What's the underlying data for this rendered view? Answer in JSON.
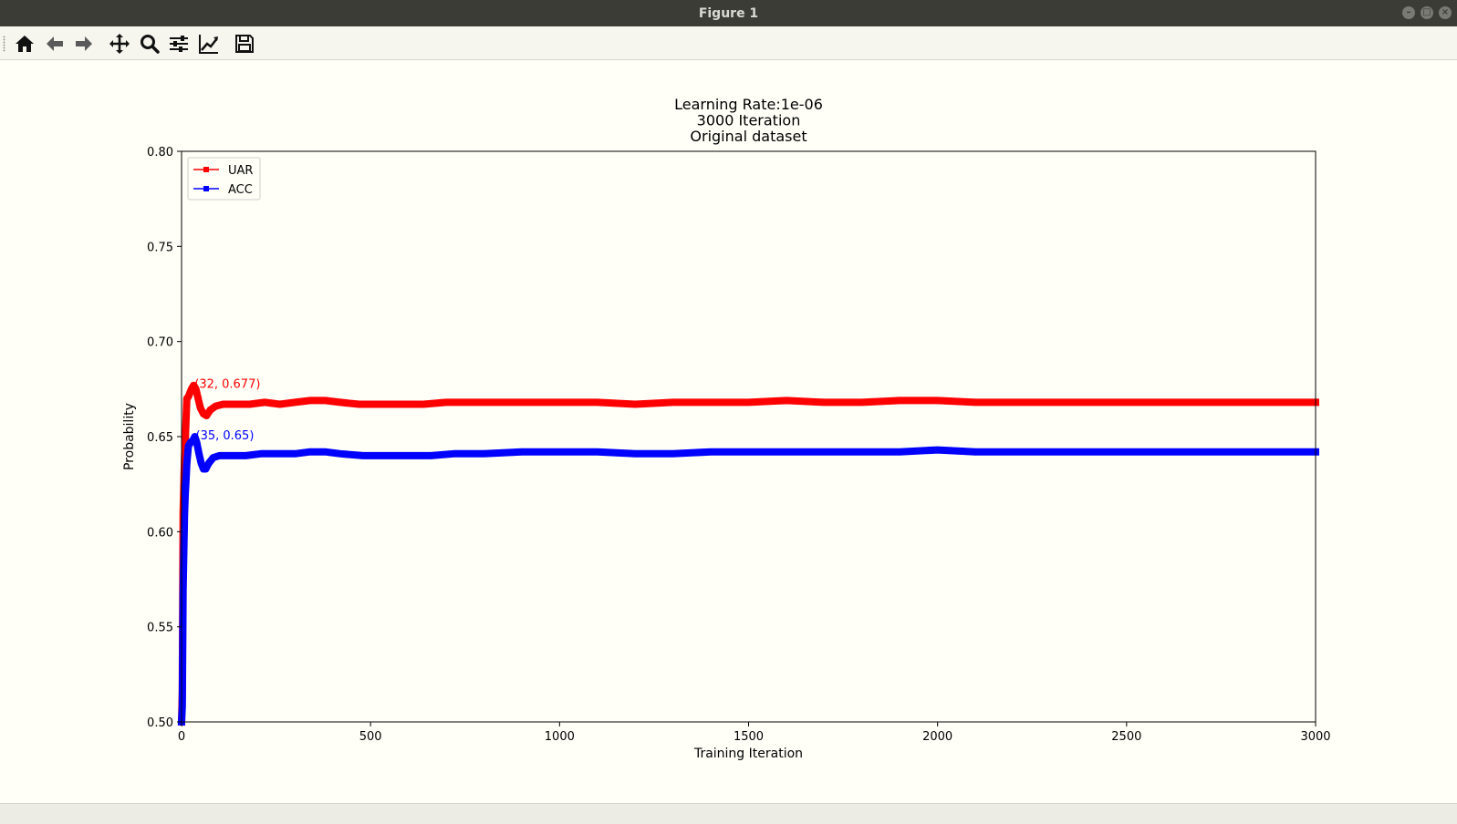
{
  "window": {
    "title": "Figure 1"
  },
  "toolbar": {
    "buttons": [
      {
        "name": "home",
        "icon": "home-icon"
      },
      {
        "name": "back",
        "icon": "arrow-left-icon"
      },
      {
        "name": "forward",
        "icon": "arrow-right-icon"
      },
      {
        "name": "pan",
        "icon": "move-icon"
      },
      {
        "name": "zoom",
        "icon": "magnifier-icon"
      },
      {
        "name": "configure-subplots",
        "icon": "sliders-icon"
      },
      {
        "name": "edit-axis",
        "icon": "chart-line-icon"
      },
      {
        "name": "save",
        "icon": "floppy-disk-icon"
      }
    ]
  },
  "chart_data": {
    "type": "line",
    "title_lines": [
      "Learning Rate:1e-06",
      "3000 Iteration",
      "Original dataset"
    ],
    "xlabel": "Training Iteration",
    "ylabel": "Probability",
    "xlim": [
      0,
      3000
    ],
    "ylim": [
      0.5,
      0.8
    ],
    "xticks": [
      0,
      500,
      1000,
      1500,
      2000,
      2500,
      3000
    ],
    "xtick_labels": [
      "0",
      "500",
      "1000",
      "1500",
      "2000",
      "2500",
      "3000"
    ],
    "yticks": [
      0.5,
      0.55,
      0.6,
      0.65,
      0.7,
      0.75,
      0.8
    ],
    "ytick_labels": [
      "0.50",
      "0.55",
      "0.60",
      "0.65",
      "0.70",
      "0.75",
      "0.80"
    ],
    "grid": false,
    "legend_position": "top-left",
    "series": [
      {
        "name": "UAR",
        "color": "#ff0000",
        "points": [
          [
            0,
            0.5
          ],
          [
            2,
            0.516
          ],
          [
            4,
            0.61
          ],
          [
            6,
            0.625
          ],
          [
            8,
            0.64
          ],
          [
            10,
            0.648
          ],
          [
            12,
            0.66
          ],
          [
            14,
            0.67
          ],
          [
            18,
            0.671
          ],
          [
            22,
            0.673
          ],
          [
            26,
            0.675
          ],
          [
            32,
            0.677
          ],
          [
            38,
            0.675
          ],
          [
            44,
            0.67
          ],
          [
            50,
            0.665
          ],
          [
            58,
            0.662
          ],
          [
            66,
            0.661
          ],
          [
            76,
            0.664
          ],
          [
            90,
            0.666
          ],
          [
            110,
            0.667
          ],
          [
            140,
            0.667
          ],
          [
            180,
            0.667
          ],
          [
            220,
            0.668
          ],
          [
            260,
            0.667
          ],
          [
            300,
            0.668
          ],
          [
            340,
            0.669
          ],
          [
            380,
            0.669
          ],
          [
            420,
            0.668
          ],
          [
            470,
            0.667
          ],
          [
            520,
            0.667
          ],
          [
            580,
            0.667
          ],
          [
            640,
            0.667
          ],
          [
            700,
            0.668
          ],
          [
            800,
            0.668
          ],
          [
            900,
            0.668
          ],
          [
            1000,
            0.668
          ],
          [
            1100,
            0.668
          ],
          [
            1200,
            0.667
          ],
          [
            1300,
            0.668
          ],
          [
            1400,
            0.668
          ],
          [
            1500,
            0.668
          ],
          [
            1600,
            0.669
          ],
          [
            1700,
            0.668
          ],
          [
            1800,
            0.668
          ],
          [
            1900,
            0.669
          ],
          [
            2000,
            0.669
          ],
          [
            2100,
            0.668
          ],
          [
            2200,
            0.668
          ],
          [
            2300,
            0.668
          ],
          [
            2400,
            0.668
          ],
          [
            2500,
            0.668
          ],
          [
            2600,
            0.668
          ],
          [
            2700,
            0.668
          ],
          [
            2800,
            0.668
          ],
          [
            2900,
            0.668
          ],
          [
            3000,
            0.668
          ]
        ]
      },
      {
        "name": "ACC",
        "color": "#0000ff",
        "points": [
          [
            0,
            0.5
          ],
          [
            2,
            0.508
          ],
          [
            4,
            0.569
          ],
          [
            6,
            0.59
          ],
          [
            8,
            0.61
          ],
          [
            10,
            0.62
          ],
          [
            12,
            0.628
          ],
          [
            14,
            0.636
          ],
          [
            18,
            0.645
          ],
          [
            24,
            0.647
          ],
          [
            30,
            0.648
          ],
          [
            35,
            0.65
          ],
          [
            40,
            0.647
          ],
          [
            46,
            0.641
          ],
          [
            52,
            0.636
          ],
          [
            58,
            0.633
          ],
          [
            64,
            0.633
          ],
          [
            72,
            0.636
          ],
          [
            84,
            0.639
          ],
          [
            100,
            0.64
          ],
          [
            130,
            0.64
          ],
          [
            170,
            0.64
          ],
          [
            210,
            0.641
          ],
          [
            260,
            0.641
          ],
          [
            300,
            0.641
          ],
          [
            340,
            0.642
          ],
          [
            380,
            0.642
          ],
          [
            420,
            0.641
          ],
          [
            480,
            0.64
          ],
          [
            540,
            0.64
          ],
          [
            600,
            0.64
          ],
          [
            660,
            0.64
          ],
          [
            720,
            0.641
          ],
          [
            800,
            0.641
          ],
          [
            900,
            0.642
          ],
          [
            1000,
            0.642
          ],
          [
            1100,
            0.642
          ],
          [
            1200,
            0.641
          ],
          [
            1300,
            0.641
          ],
          [
            1400,
            0.642
          ],
          [
            1500,
            0.642
          ],
          [
            1600,
            0.642
          ],
          [
            1700,
            0.642
          ],
          [
            1800,
            0.642
          ],
          [
            1900,
            0.642
          ],
          [
            2000,
            0.643
          ],
          [
            2100,
            0.642
          ],
          [
            2200,
            0.642
          ],
          [
            2300,
            0.642
          ],
          [
            2400,
            0.642
          ],
          [
            2500,
            0.642
          ],
          [
            2600,
            0.642
          ],
          [
            2700,
            0.642
          ],
          [
            2800,
            0.642
          ],
          [
            2900,
            0.642
          ],
          [
            3000,
            0.642
          ]
        ]
      }
    ],
    "annotations": [
      {
        "text": "(32, 0.677)",
        "x": 32,
        "y": 0.677,
        "color": "#ff0000"
      },
      {
        "text": "(35, 0.65)",
        "x": 35,
        "y": 0.65,
        "color": "#0000ff"
      }
    ]
  }
}
